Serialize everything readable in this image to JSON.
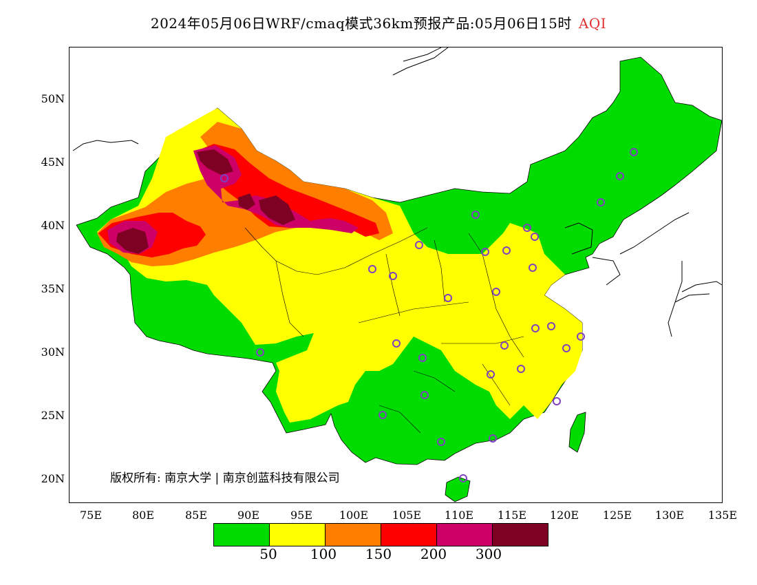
{
  "title": {
    "main": "2024年05月06日WRF/cmaq模式36km预报产品:05月06日15时",
    "product": "AQI"
  },
  "axes": {
    "lat_labels": [
      "50N",
      "45N",
      "40N",
      "35N",
      "30N",
      "25N",
      "20N"
    ],
    "lon_labels": [
      "75E",
      "80E",
      "85E",
      "90E",
      "95E",
      "100E",
      "105E",
      "110E",
      "115E",
      "120E",
      "125E",
      "130E",
      "135E"
    ],
    "lon_range": [
      73,
      135
    ],
    "lat_range": [
      18,
      54
    ]
  },
  "copyright": "版权所有: 南京大学 | 南京创蓝科技有限公司",
  "legend": {
    "colors": [
      "#00dc00",
      "#ffff00",
      "#ff7e00",
      "#ff0000",
      "#cc0066",
      "#7e0023"
    ],
    "labels": [
      "50",
      "100",
      "150",
      "200",
      "300"
    ]
  },
  "colors": {
    "good": "#00dc00",
    "moderate": "#ffff00",
    "usg": "#ff7e00",
    "unhealthy": "#ff0000",
    "very_unhealthy": "#cc0066",
    "hazardous": "#7e0023",
    "station_marker": "#8040c0"
  }
}
